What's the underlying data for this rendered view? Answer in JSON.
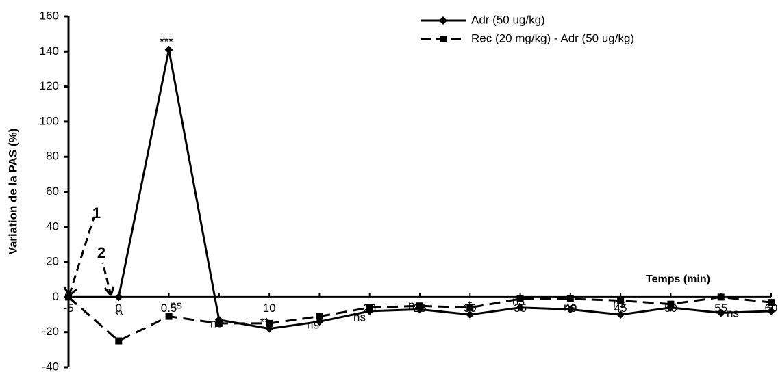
{
  "chart_data": {
    "type": "line",
    "y_label": "Variation de la PAS (%)",
    "x_label": "Temps (min)",
    "categories": [
      "-5",
      "0",
      "0.5",
      null,
      "10",
      null,
      "20",
      "25",
      "30",
      "35",
      "40",
      "45",
      "50",
      "55",
      "60"
    ],
    "series": [
      {
        "name": "Adr (50 ug/kg)",
        "color": "#000000",
        "dash": false,
        "marker": "diamond",
        "values": [
          0,
          0,
          141,
          -13,
          -18,
          -14,
          -8,
          -7,
          -10,
          -6,
          -7,
          -10,
          -6,
          -9,
          -8
        ]
      },
      {
        "name": "Rec (20 mg/kg) - Adr (50 ug/kg)",
        "color": "#000000",
        "dash": true,
        "marker": "square",
        "values": [
          0,
          -25,
          -11,
          -15,
          -15,
          -11,
          -6,
          -5,
          -6,
          -1,
          -1,
          -2,
          -4,
          0,
          -3
        ]
      }
    ],
    "ylim": [
      -40,
      160
    ],
    "yticks": [
      -40,
      -20,
      0,
      20,
      40,
      60,
      80,
      100,
      120,
      140,
      160
    ],
    "annotations": [
      "***",
      "**",
      "ns",
      "ns",
      "**",
      "ns",
      "ns",
      "ns",
      "*",
      "ns",
      "ns",
      "ns",
      "ns",
      "1",
      "2"
    ]
  }
}
